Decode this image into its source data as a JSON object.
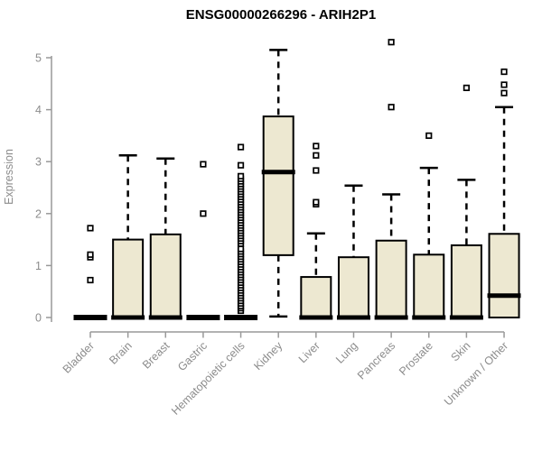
{
  "chart_data": {
    "type": "boxplot",
    "title": "ENSG00000266296 - ARIH2P1",
    "ylabel": "Expression",
    "xlabel": "",
    "ylim": [
      0,
      5
    ],
    "yticks": [
      0,
      1,
      2,
      3,
      4,
      5
    ],
    "grid": false,
    "legend": "none",
    "colors": {
      "box_fill": "#ede8d1",
      "box_stroke": "#000000",
      "axis_line": "#999999",
      "axis_text": "#8c8c8c",
      "title_text": "#000000",
      "background": "#ffffff"
    },
    "categories": [
      "Bladder",
      "Brain",
      "Breast",
      "Gastric",
      "Hematopoietic cells",
      "Kidney",
      "Liver",
      "Lung",
      "Pancreas",
      "Prostate",
      "Skin",
      "Unknown / Other"
    ],
    "boxes": [
      {
        "category": "Bladder",
        "q1": 0,
        "median": 0,
        "q3": 0,
        "whisker_low": 0,
        "whisker_high": 0,
        "outliers": [
          0.72,
          1.16,
          1.21,
          1.72
        ]
      },
      {
        "category": "Brain",
        "q1": 0,
        "median": 0,
        "q3": 1.5,
        "whisker_low": 0,
        "whisker_high": 3.12,
        "outliers": []
      },
      {
        "category": "Breast",
        "q1": 0,
        "median": 0,
        "q3": 1.6,
        "whisker_low": 0,
        "whisker_high": 3.06,
        "outliers": []
      },
      {
        "category": "Gastric",
        "q1": 0,
        "median": 0,
        "q3": 0,
        "whisker_low": 0,
        "whisker_high": 0,
        "outliers": [
          2.0,
          2.95
        ]
      },
      {
        "category": "Hematopoietic cells",
        "q1": 0,
        "median": 0,
        "q3": 0,
        "whisker_low": 0,
        "whisker_high": 0,
        "outliers": [
          0.13,
          0.18,
          0.22,
          0.27,
          0.32,
          0.37,
          0.42,
          0.47,
          0.52,
          0.57,
          0.62,
          0.67,
          0.72,
          0.77,
          0.82,
          0.87,
          0.92,
          0.97,
          1.02,
          1.07,
          1.12,
          1.17,
          1.22,
          1.27,
          1.32,
          1.42,
          1.47,
          1.52,
          1.57,
          1.62,
          1.67,
          1.72,
          1.77,
          1.82,
          1.87,
          1.92,
          1.97,
          2.02,
          2.07,
          2.12,
          2.17,
          2.22,
          2.27,
          2.32,
          2.37,
          2.42,
          2.47,
          2.52,
          2.57,
          2.62,
          2.67,
          2.72,
          2.93,
          3.28
        ]
      },
      {
        "category": "Kidney",
        "q1": 1.2,
        "median": 2.8,
        "q3": 3.87,
        "whisker_low": 0.02,
        "whisker_high": 5.15,
        "outliers": []
      },
      {
        "category": "Liver",
        "q1": 0,
        "median": 0,
        "q3": 0.78,
        "whisker_low": 0,
        "whisker_high": 1.62,
        "outliers": [
          2.18,
          2.22,
          2.83,
          3.12,
          3.3
        ]
      },
      {
        "category": "Lung",
        "q1": 0,
        "median": 0,
        "q3": 1.16,
        "whisker_low": 0,
        "whisker_high": 2.54,
        "outliers": []
      },
      {
        "category": "Pancreas",
        "q1": 0,
        "median": 0,
        "q3": 1.48,
        "whisker_low": 0,
        "whisker_high": 2.37,
        "outliers": [
          4.05,
          5.3
        ]
      },
      {
        "category": "Prostate",
        "q1": 0,
        "median": 0,
        "q3": 1.21,
        "whisker_low": 0,
        "whisker_high": 2.88,
        "outliers": [
          3.5
        ]
      },
      {
        "category": "Skin",
        "q1": 0,
        "median": 0,
        "q3": 1.39,
        "whisker_low": 0,
        "whisker_high": 2.65,
        "outliers": [
          4.42
        ]
      },
      {
        "category": "Unknown / Other",
        "q1": 0,
        "median": 0.42,
        "q3": 1.61,
        "whisker_low": 0,
        "whisker_high": 4.05,
        "outliers": [
          4.32,
          4.48,
          4.73
        ]
      }
    ]
  }
}
